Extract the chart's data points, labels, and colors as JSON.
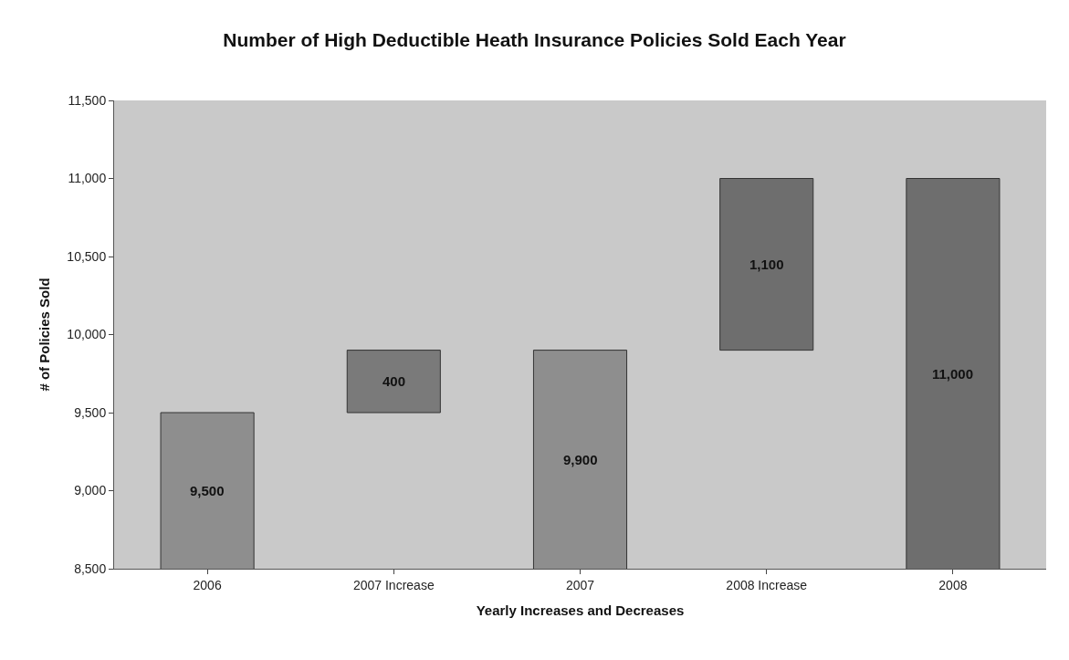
{
  "chart_data": {
    "type": "bar",
    "title": "Number of High Deductible Heath Insurance Policies Sold Each Year",
    "xlabel": "Yearly Increases and Decreases",
    "ylabel": "# of Policies Sold",
    "categories": [
      "2006",
      "2007 Increase",
      "2007",
      "2008 Increase",
      "2008"
    ],
    "values": [
      9500,
      400,
      9900,
      1100,
      11000
    ],
    "base": [
      0,
      9500,
      0,
      9900,
      0
    ],
    "colors": [
      "#8e8e8e",
      "#7a7a7a",
      "#8e8e8e",
      "#6e6e6e",
      "#6e6e6e"
    ],
    "ylim": [
      8500,
      11500
    ],
    "yticks": [
      {
        "value": 8500,
        "label": "8,500"
      },
      {
        "value": 9000,
        "label": "9,000"
      },
      {
        "value": 9500,
        "label": "9,500"
      },
      {
        "value": 10000,
        "label": "10,000"
      },
      {
        "value": 10500,
        "label": "10,500"
      },
      {
        "value": 11000,
        "label": "11,000"
      },
      {
        "value": 11500,
        "label": "11,500"
      }
    ],
    "value_labels": [
      "9,500",
      "400",
      "9,900",
      "1,100",
      "11,000"
    ],
    "grid": false,
    "legend": false
  }
}
